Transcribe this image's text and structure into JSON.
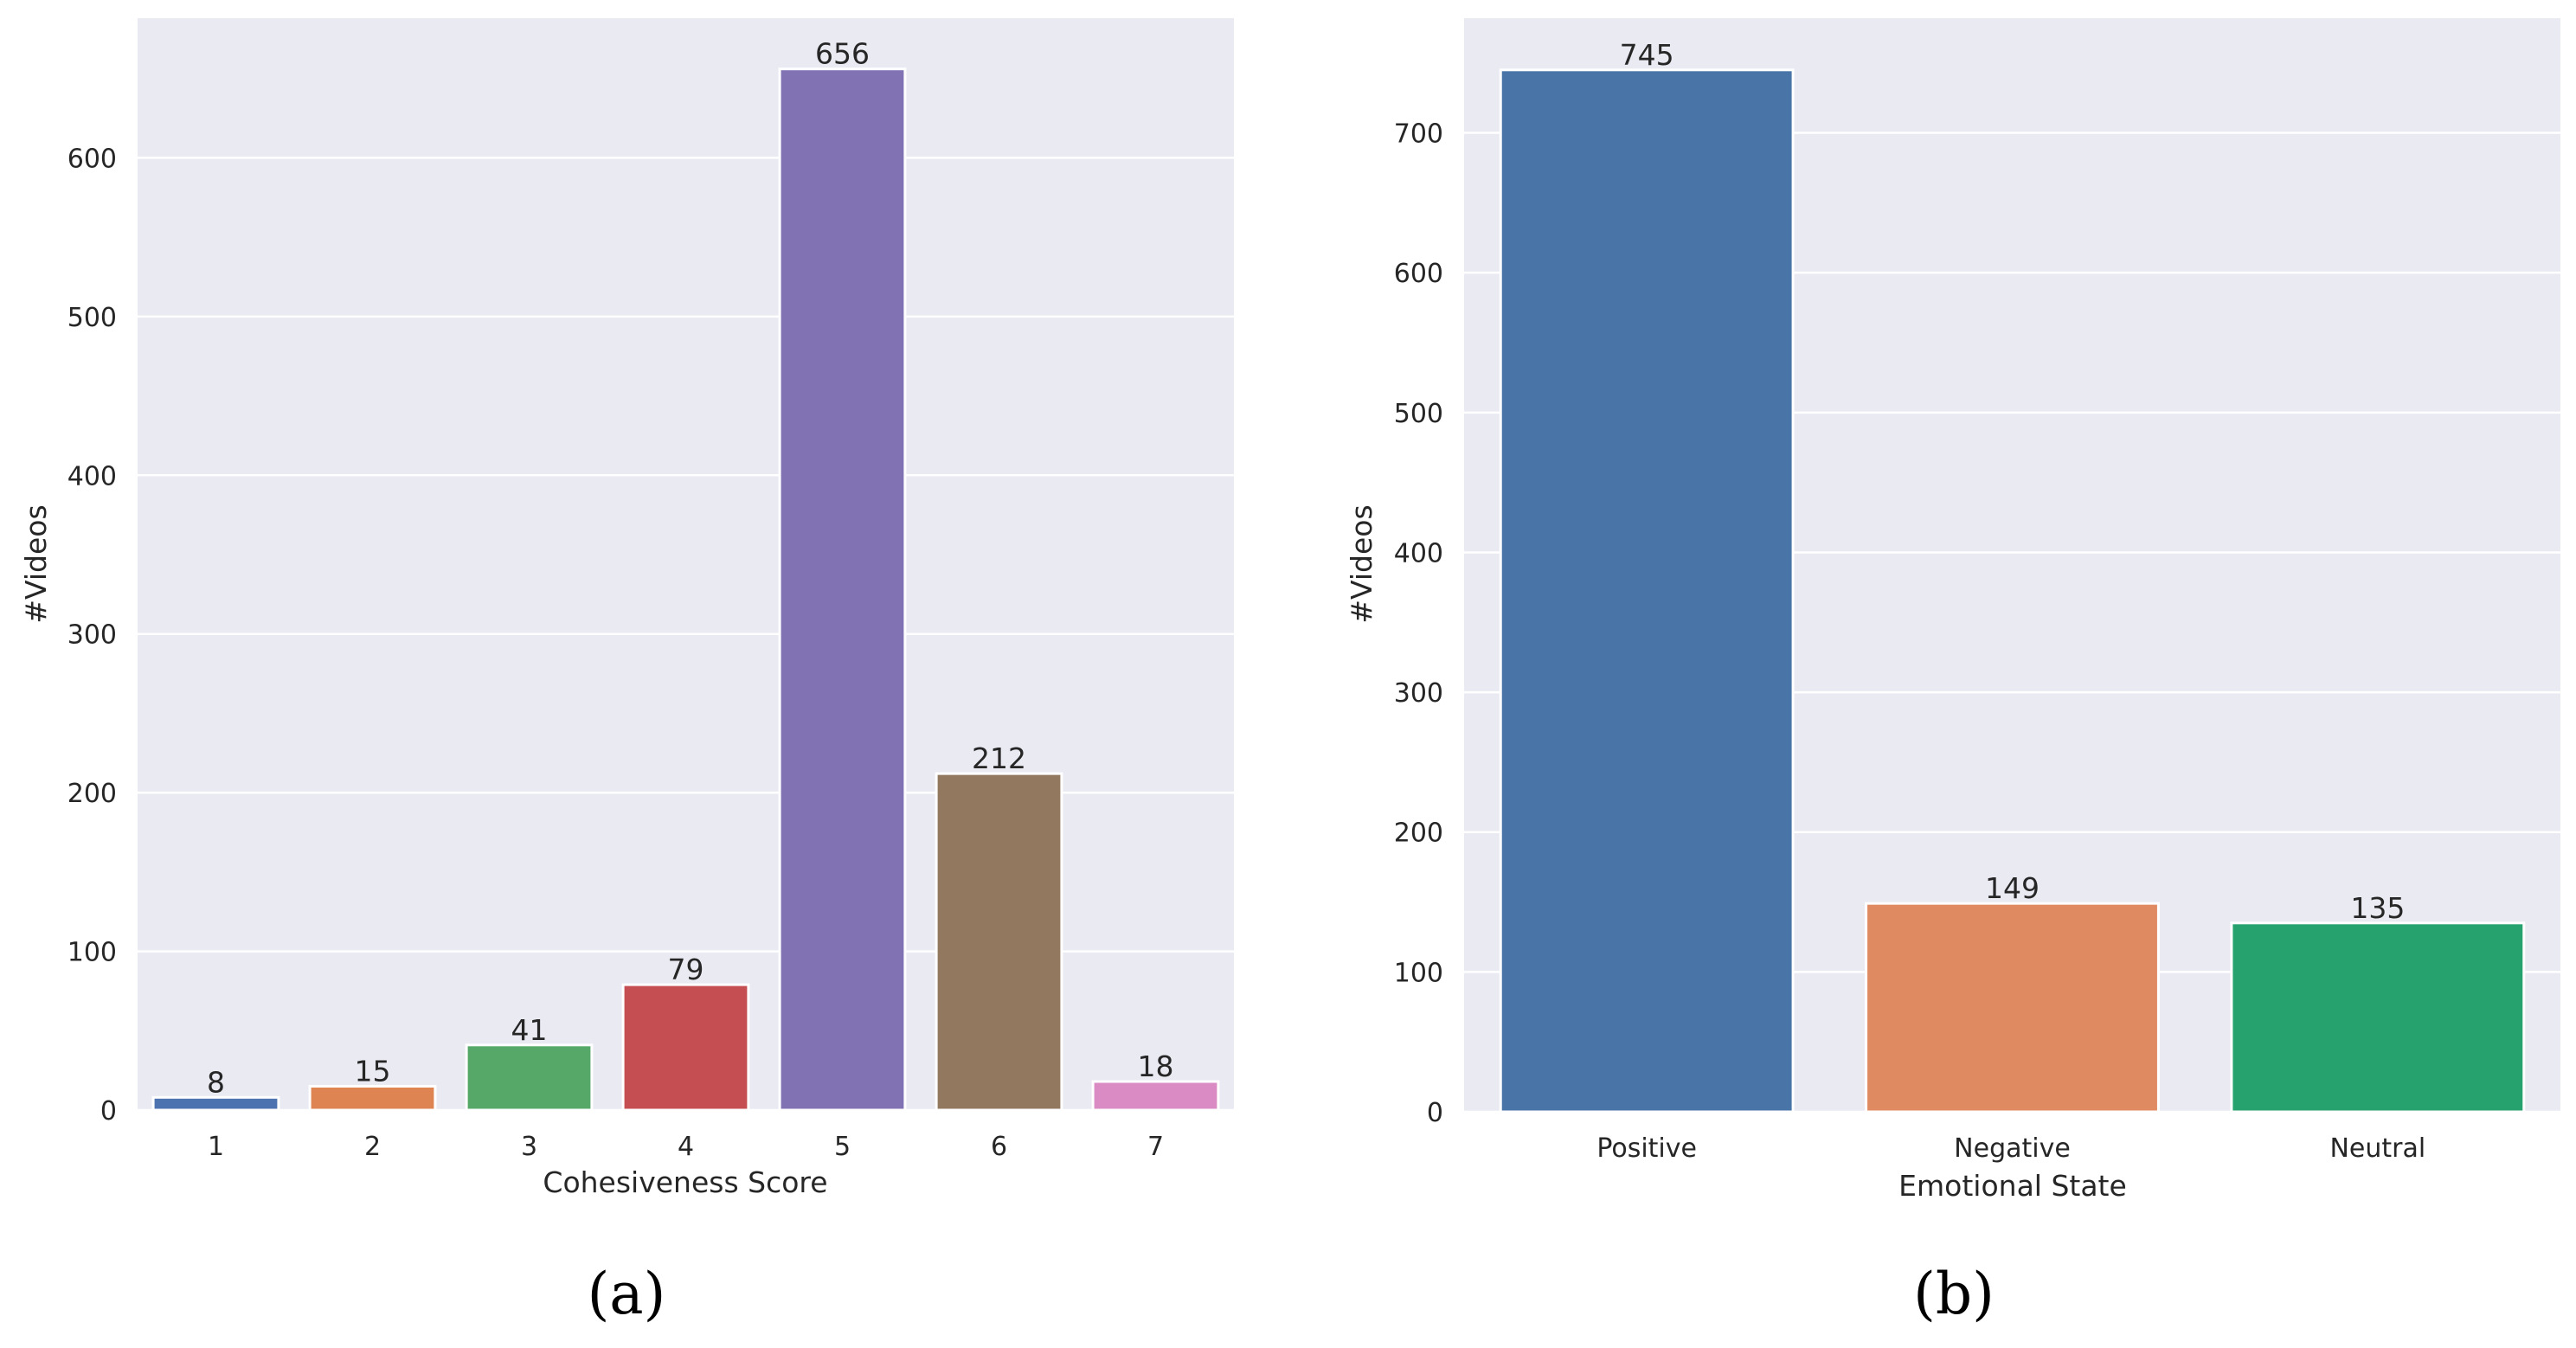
{
  "chart_data": [
    {
      "type": "bar",
      "panel_label": "(a)",
      "categories": [
        "1",
        "2",
        "3",
        "4",
        "5",
        "6",
        "7"
      ],
      "values": [
        8,
        15,
        41,
        79,
        656,
        212,
        18
      ],
      "data_labels": [
        "8",
        "15",
        "41",
        "79",
        "656",
        "212",
        "18"
      ],
      "colors": [
        "#4c72b0",
        "#dd8452",
        "#55a868",
        "#c44e52",
        "#8172b3",
        "#937860",
        "#da8bc3"
      ],
      "title": "",
      "xlabel": "Cohesiveness Score",
      "ylabel": "#Videos",
      "ylim": [
        0,
        688
      ],
      "yticks": [
        0,
        100,
        200,
        300,
        400,
        500,
        600
      ],
      "ytick_labels": [
        "0",
        "100",
        "200",
        "300",
        "400",
        "500",
        "600"
      ],
      "grid": true,
      "legend": "none"
    },
    {
      "type": "bar",
      "panel_label": "(b)",
      "categories": [
        "Positive",
        "Negative",
        "Neutral"
      ],
      "values": [
        745,
        149,
        135
      ],
      "data_labels": [
        "745",
        "149",
        "135"
      ],
      "colors": [
        "#4874a8",
        "#e08a62",
        "#25a26d"
      ],
      "title": "",
      "xlabel": "Emotional State",
      "ylabel": "#Videos",
      "ylim": [
        0,
        782
      ],
      "yticks": [
        0,
        100,
        200,
        300,
        400,
        500,
        600,
        700
      ],
      "ytick_labels": [
        "0",
        "100",
        "200",
        "300",
        "400",
        "500",
        "600",
        "700"
      ],
      "grid": true,
      "legend": "none"
    }
  ]
}
